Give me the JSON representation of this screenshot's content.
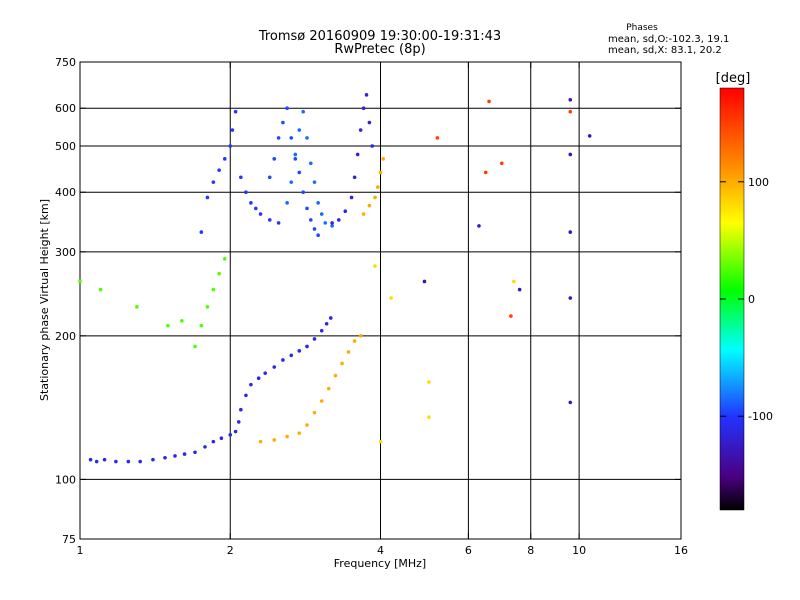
{
  "header": {
    "title_line1": "Tromsø 20160909 19:30:00-19:31:43",
    "title_line2": "RwPretec (8p)",
    "phases_label": "Phases",
    "stats_o": "mean, sd,O:-102.3, 19.1",
    "stats_x": "mean, sd,X:  83.1, 20.2"
  },
  "colorbar": {
    "unit_label": "[deg]",
    "ticks": [
      {
        "label": "100",
        "value": 100
      },
      {
        "label": "0",
        "value": 0
      },
      {
        "label": "-100",
        "value": -100
      }
    ],
    "range": [
      -180,
      180
    ]
  },
  "chart_data": {
    "type": "scatter",
    "title": "Tromsø 20160909 19:30:00-19:31:43",
    "subtitle": "RwPretec (8p)",
    "xlabel": "Frequency [MHz]",
    "ylabel": "Stationary phase Virtual Height [km]",
    "x_scale": "log",
    "y_scale": "log",
    "xlim": [
      1,
      16
    ],
    "ylim": [
      75,
      750
    ],
    "x_ticks": [
      {
        "label": "1",
        "value": 1
      },
      {
        "label": "2",
        "value": 2
      },
      {
        "label": "4",
        "value": 4
      },
      {
        "label": "6",
        "value": 6
      },
      {
        "label": "8",
        "value": 8
      },
      {
        "label": "10",
        "value": 10
      },
      {
        "label": "16",
        "value": 16
      }
    ],
    "y_ticks": [
      {
        "label": "75",
        "value": 75
      },
      {
        "label": "100",
        "value": 100
      },
      {
        "label": "200",
        "value": 200
      },
      {
        "label": "300",
        "value": 300
      },
      {
        "label": "400",
        "value": 400
      },
      {
        "label": "500",
        "value": 500
      },
      {
        "label": "600",
        "value": 600
      },
      {
        "label": "750",
        "value": 750
      }
    ],
    "grid": true,
    "grid_x": [
      2,
      4,
      6,
      8,
      10
    ],
    "grid_y": [
      100,
      200,
      300,
      400,
      500,
      600
    ],
    "colorbar_title": "[deg]",
    "colorbar_range": [
      -180,
      180
    ],
    "traces": [
      {
        "phase": -110,
        "points": [
          [
            1.05,
            110
          ],
          [
            1.08,
            109
          ],
          [
            1.12,
            110
          ],
          [
            1.18,
            109
          ],
          [
            1.25,
            109
          ],
          [
            1.32,
            109
          ],
          [
            1.4,
            110
          ],
          [
            1.48,
            111
          ],
          [
            1.55,
            112
          ],
          [
            1.62,
            113
          ],
          [
            1.7,
            114
          ],
          [
            1.78,
            117
          ],
          [
            1.85,
            120
          ],
          [
            1.92,
            122
          ],
          [
            2.0,
            124
          ],
          [
            2.05,
            126
          ],
          [
            2.08,
            132
          ],
          [
            2.1,
            140
          ],
          [
            2.15,
            150
          ],
          [
            2.2,
            158
          ],
          [
            2.28,
            163
          ],
          [
            2.35,
            167
          ],
          [
            2.45,
            172
          ],
          [
            2.55,
            178
          ],
          [
            2.65,
            182
          ],
          [
            2.75,
            186
          ],
          [
            2.85,
            190
          ],
          [
            2.95,
            197
          ],
          [
            3.05,
            205
          ],
          [
            3.12,
            212
          ],
          [
            3.18,
            218
          ]
        ]
      },
      {
        "phase": -100,
        "points": [
          [
            1.75,
            330
          ],
          [
            1.8,
            390
          ],
          [
            1.85,
            420
          ],
          [
            1.9,
            445
          ],
          [
            1.95,
            470
          ],
          [
            2.0,
            500
          ],
          [
            2.02,
            540
          ],
          [
            2.05,
            590
          ],
          [
            2.1,
            430
          ],
          [
            2.15,
            400
          ],
          [
            2.2,
            380
          ],
          [
            2.25,
            370
          ],
          [
            2.3,
            360
          ],
          [
            2.4,
            350
          ],
          [
            2.5,
            345
          ]
        ]
      },
      {
        "phase": -95,
        "points": [
          [
            2.4,
            430
          ],
          [
            2.45,
            470
          ],
          [
            2.5,
            520
          ],
          [
            2.55,
            560
          ],
          [
            2.6,
            600
          ],
          [
            2.65,
            520
          ],
          [
            2.7,
            470
          ],
          [
            2.75,
            440
          ],
          [
            2.8,
            400
          ],
          [
            2.85,
            370
          ],
          [
            2.9,
            350
          ],
          [
            2.95,
            335
          ],
          [
            3.0,
            325
          ]
        ]
      },
      {
        "phase": -85,
        "points": [
          [
            2.6,
            380
          ],
          [
            2.65,
            420
          ],
          [
            2.7,
            480
          ],
          [
            2.75,
            540
          ],
          [
            2.8,
            590
          ],
          [
            2.85,
            520
          ],
          [
            2.9,
            460
          ],
          [
            2.95,
            420
          ],
          [
            3.0,
            380
          ],
          [
            3.05,
            360
          ],
          [
            3.1,
            345
          ],
          [
            3.2,
            340
          ]
        ]
      },
      {
        "phase": -115,
        "points": [
          [
            3.2,
            345
          ],
          [
            3.3,
            350
          ],
          [
            3.4,
            365
          ],
          [
            3.5,
            390
          ],
          [
            3.55,
            430
          ],
          [
            3.6,
            480
          ],
          [
            3.65,
            540
          ],
          [
            3.7,
            600
          ],
          [
            3.75,
            640
          ],
          [
            3.8,
            560
          ],
          [
            3.85,
            500
          ]
        ]
      },
      {
        "phase": 100,
        "points": [
          [
            2.3,
            120
          ],
          [
            2.45,
            121
          ],
          [
            2.6,
            123
          ],
          [
            2.75,
            125
          ],
          [
            2.85,
            130
          ],
          [
            2.95,
            138
          ],
          [
            3.05,
            146
          ],
          [
            3.15,
            155
          ],
          [
            3.25,
            165
          ],
          [
            3.35,
            175
          ],
          [
            3.45,
            185
          ],
          [
            3.55,
            195
          ],
          [
            3.65,
            200
          ],
          [
            3.7,
            360
          ],
          [
            3.8,
            375
          ],
          [
            3.9,
            390
          ],
          [
            3.95,
            410
          ],
          [
            4.0,
            440
          ],
          [
            4.05,
            470
          ]
        ]
      },
      {
        "phase": 25,
        "points": [
          [
            1.7,
            190
          ],
          [
            1.75,
            210
          ],
          [
            1.8,
            230
          ],
          [
            1.85,
            250
          ],
          [
            1.9,
            270
          ],
          [
            1.95,
            290
          ],
          [
            1.0,
            260
          ],
          [
            1.1,
            250
          ],
          [
            1.3,
            230
          ],
          [
            1.5,
            210
          ],
          [
            1.6,
            215
          ]
        ]
      },
      {
        "phase": 150,
        "points": [
          [
            6.5,
            440
          ],
          [
            6.6,
            620
          ],
          [
            7.0,
            460
          ],
          [
            7.3,
            220
          ],
          [
            5.2,
            520
          ],
          [
            9.6,
            590
          ]
        ]
      },
      {
        "phase": -130,
        "points": [
          [
            6.3,
            340
          ],
          [
            9.6,
            330
          ],
          [
            9.6,
            240
          ],
          [
            9.6,
            145
          ],
          [
            9.6,
            480
          ],
          [
            9.6,
            625
          ],
          [
            10.5,
            525
          ],
          [
            4.9,
            260
          ],
          [
            7.6,
            250
          ]
        ]
      },
      {
        "phase": 80,
        "points": [
          [
            5.0,
            135
          ],
          [
            5.0,
            160
          ],
          [
            4.2,
            240
          ],
          [
            4.0,
            120
          ],
          [
            7.4,
            260
          ],
          [
            3.9,
            280
          ]
        ]
      }
    ]
  }
}
